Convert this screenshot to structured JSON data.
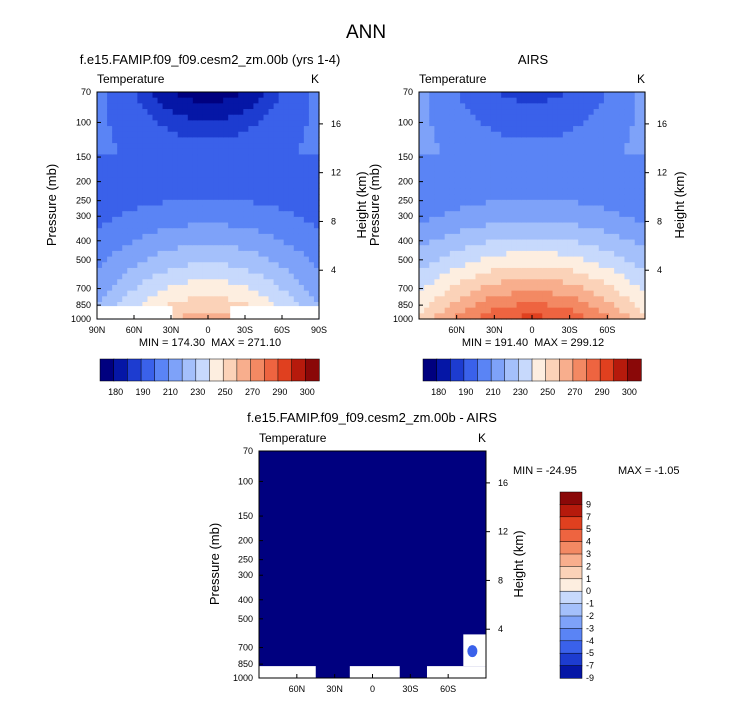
{
  "title": "ANN",
  "colors": {
    "scale_ab": [
      "#00007f",
      "#0516a6",
      "#1d3cd0",
      "#3a61ea",
      "#5a84f5",
      "#7ea2f9",
      "#a4c0fb",
      "#c7d9fc",
      "#fdeee0",
      "#fbd2b8",
      "#f8ae8d",
      "#f38963",
      "#ee6440",
      "#e0401f",
      "#b61a0c",
      "#8a0808"
    ],
    "scale_diff": [
      "#00007f",
      "#0516a6",
      "#1d3cd0",
      "#3a61ea",
      "#5a84f5",
      "#7ea2f9",
      "#a4c0fb",
      "#c7d9fc",
      "#fdeee0",
      "#fbd2b8",
      "#f8ae8d",
      "#f38963",
      "#ee6440",
      "#e0401f",
      "#b61a0c",
      "#8a0808"
    ]
  },
  "chart_data": [
    {
      "type": "heatmap",
      "title": "f.e15.FAMIP.f09_f09.cesm2_zm.00b (yrs 1-4)",
      "left_label": "Temperature",
      "right_label": "K",
      "xlabel": "",
      "ylabel": "Pressure (mb)",
      "y2label": "Height (km)",
      "xticks": [
        "90N",
        "60N",
        "30N",
        "0",
        "30S",
        "60S",
        "90S"
      ],
      "xtick_values": [
        90,
        60,
        30,
        0,
        -30,
        -60,
        -90
      ],
      "xlim": [
        90,
        -90
      ],
      "yticks": [
        "70",
        "100",
        "150",
        "200",
        "250",
        "300",
        "400",
        "500",
        "700",
        "850",
        "1000"
      ],
      "ytick_values": [
        70,
        100,
        150,
        200,
        250,
        300,
        400,
        500,
        700,
        850,
        1000
      ],
      "ylim": [
        70,
        1000
      ],
      "y2ticks": [
        "16",
        "12",
        "8",
        "4"
      ],
      "y2tick_values": [
        16,
        12,
        8,
        4
      ],
      "min_label": "MIN = 174.30",
      "max_label": "MAX = 271.10",
      "field": "model",
      "colorbar_ticks": [
        "180",
        "190",
        "210",
        "230",
        "250",
        "270",
        "290",
        "300"
      ]
    },
    {
      "type": "heatmap",
      "title": "AIRS",
      "left_label": "Temperature",
      "right_label": "K",
      "xlabel": "",
      "ylabel": "Pressure (mb)",
      "y2label": "Height (km)",
      "xticks": [
        "60N",
        "30N",
        "0",
        "30S",
        "60S"
      ],
      "xtick_values": [
        60,
        30,
        0,
        -30,
        -60
      ],
      "xlim": [
        90,
        -90
      ],
      "yticks": [
        "70",
        "100",
        "150",
        "200",
        "250",
        "300",
        "400",
        "500",
        "700",
        "850",
        "1000"
      ],
      "ytick_values": [
        70,
        100,
        150,
        200,
        250,
        300,
        400,
        500,
        700,
        850,
        1000
      ],
      "ylim": [
        70,
        1000
      ],
      "y2ticks": [
        "16",
        "12",
        "8",
        "4"
      ],
      "y2tick_values": [
        16,
        12,
        8,
        4
      ],
      "min_label": "MIN = 191.40",
      "max_label": "MAX = 299.12",
      "field": "obs",
      "colorbar_ticks": [
        "180",
        "190",
        "210",
        "230",
        "250",
        "270",
        "290",
        "300"
      ]
    },
    {
      "type": "heatmap",
      "title": "f.e15.FAMIP.f09_f09.cesm2_zm.00b - AIRS",
      "left_label": "Temperature",
      "right_label": "K",
      "xlabel": "",
      "ylabel": "Pressure (mb)",
      "y2label": "Height (km)",
      "xticks": [
        "60N",
        "30N",
        "0",
        "30S",
        "60S"
      ],
      "xtick_values": [
        60,
        30,
        0,
        -30,
        -60
      ],
      "xlim": [
        90,
        -90
      ],
      "yticks": [
        "70",
        "100",
        "150",
        "200",
        "250",
        "300",
        "400",
        "500",
        "700",
        "850",
        "1000"
      ],
      "ytick_values": [
        70,
        100,
        150,
        200,
        250,
        300,
        400,
        500,
        700,
        850,
        1000
      ],
      "ylim": [
        70,
        1000
      ],
      "y2ticks": [
        "16",
        "12",
        "8",
        "4"
      ],
      "y2tick_values": [
        16,
        12,
        8,
        4
      ],
      "min_label": "MIN = -24.95",
      "max_label": "MAX =  -1.05",
      "field": "diff",
      "colorbar_ticks": [
        "9",
        "7",
        "5",
        "4",
        "3",
        "2",
        "1",
        "0",
        "-1",
        "-2",
        "-3",
        "-4",
        "-5",
        "-7",
        "-9"
      ]
    }
  ]
}
